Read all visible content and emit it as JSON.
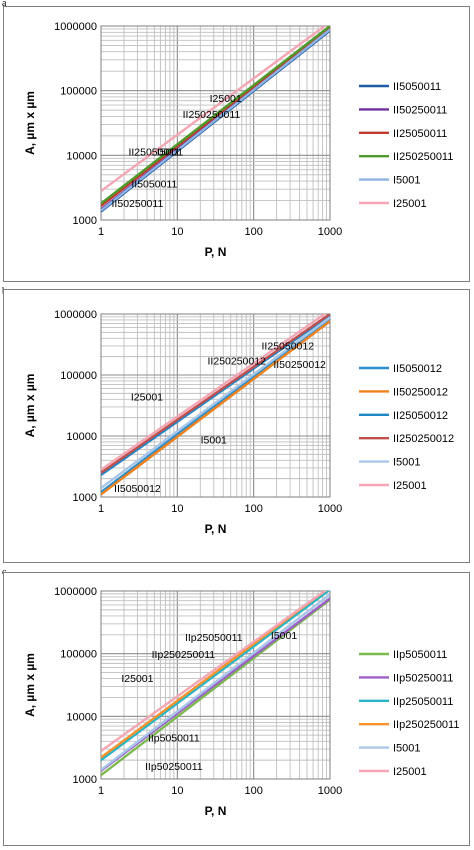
{
  "chart_data": [
    {
      "panel": "a",
      "type": "line",
      "xlabel": "P, N",
      "ylabel": "A, µm x µm",
      "xscale": "log",
      "yscale": "log",
      "xlim": [
        1,
        1000
      ],
      "ylim": [
        1000,
        1000000
      ],
      "x_ticks": [
        "1",
        "10",
        "100",
        "1000"
      ],
      "y_ticks": [
        "1000",
        "10000",
        "100000",
        "1000000"
      ],
      "grid": true,
      "legend_position": "right",
      "series": [
        {
          "name": "II5050011",
          "color": "#1f5aa6",
          "x": [
            1,
            1000
          ],
          "y": [
            1350,
            850000
          ]
        },
        {
          "name": "II50250011",
          "color": "#7030a0",
          "x": [
            1,
            1000
          ],
          "y": [
            1450,
            900000
          ]
        },
        {
          "name": "II25050011",
          "color": "#c0392b",
          "x": [
            1,
            1000
          ],
          "y": [
            1650,
            960000
          ]
        },
        {
          "name": "II250250011",
          "color": "#4e9a2a",
          "x": [
            1,
            1000
          ],
          "y": [
            1800,
            1000000
          ]
        },
        {
          "name": "I5001",
          "color": "#8db4e2",
          "x": [
            1,
            1000
          ],
          "y": [
            1400,
            880000
          ]
        },
        {
          "name": "I25001",
          "color": "#f4a6b4",
          "x": [
            1,
            1000
          ],
          "y": [
            2800,
            1150000
          ]
        }
      ],
      "annotations": [
        {
          "text": "I25001",
          "x": 43,
          "y": 67000
        },
        {
          "text": "II250250011",
          "x": 28,
          "y": 38000
        },
        {
          "text": "II25050011",
          "x": 5,
          "y": 10000
        },
        {
          "text": "I5001",
          "x": 8,
          "y": 10000
        },
        {
          "text": "II5050011",
          "x": 5,
          "y": 3200
        },
        {
          "text": "II50250011",
          "x": 3,
          "y": 1600
        }
      ]
    },
    {
      "panel": "b",
      "type": "line",
      "xlabel": "P, N",
      "ylabel": "A, µm x µm",
      "xscale": "log",
      "yscale": "log",
      "xlim": [
        1,
        1000
      ],
      "ylim": [
        1000,
        1000000
      ],
      "x_ticks": [
        "1",
        "10",
        "100",
        "1000"
      ],
      "y_ticks": [
        "1000",
        "10000",
        "100000",
        "1000000"
      ],
      "grid": true,
      "legend_position": "right",
      "series": [
        {
          "name": "II5050012",
          "color": "#2e8fc9",
          "x": [
            1,
            1000
          ],
          "y": [
            1200,
            850000
          ]
        },
        {
          "name": "II50250012",
          "color": "#f0821e",
          "x": [
            1,
            1000
          ],
          "y": [
            1100,
            760000
          ]
        },
        {
          "name": "II25050012",
          "color": "#1f86c8",
          "x": [
            1,
            1000
          ],
          "y": [
            2300,
            950000
          ]
        },
        {
          "name": "II250250012",
          "color": "#c0504d",
          "x": [
            1,
            1000
          ],
          "y": [
            2500,
            1000000
          ]
        },
        {
          "name": "I5001",
          "color": "#a9c6e8",
          "x": [
            1,
            1000
          ],
          "y": [
            1400,
            880000
          ]
        },
        {
          "name": "I25001",
          "color": "#f4a6b4",
          "x": [
            1,
            1000
          ],
          "y": [
            2800,
            1150000
          ]
        }
      ],
      "annotations": [
        {
          "text": "II25050012",
          "x": 280,
          "y": 260000
        },
        {
          "text": "II250250012",
          "x": 60,
          "y": 150000
        },
        {
          "text": "II50250012",
          "x": 400,
          "y": 130000
        },
        {
          "text": "I25001",
          "x": 4,
          "y": 38000
        },
        {
          "text": "I5001",
          "x": 30,
          "y": 7500
        },
        {
          "text": "II5050012",
          "x": 3,
          "y": 1200
        }
      ]
    },
    {
      "panel": "c",
      "type": "line",
      "xlabel": "P, N",
      "ylabel": "A, µm x µm",
      "xscale": "log",
      "yscale": "log",
      "xlim": [
        1,
        1000
      ],
      "ylim": [
        1000,
        1000000
      ],
      "x_ticks": [
        "1",
        "10",
        "100",
        "1000"
      ],
      "y_ticks": [
        "1000",
        "10000",
        "100000",
        "1000000"
      ],
      "grid": true,
      "legend_position": "right",
      "series": [
        {
          "name": "IIp5050011",
          "color": "#7cba4e",
          "x": [
            1,
            1000
          ],
          "y": [
            1150,
            730000
          ]
        },
        {
          "name": "IIp50250011",
          "color": "#9c5fc7",
          "x": [
            1,
            1000
          ],
          "y": [
            1350,
            760000
          ]
        },
        {
          "name": "IIp25050011",
          "color": "#26b6c6",
          "x": [
            1,
            1000
          ],
          "y": [
            2000,
            1050000
          ]
        },
        {
          "name": "IIp250250011",
          "color": "#f7922f",
          "x": [
            1,
            1000
          ],
          "y": [
            2200,
            1150000
          ]
        },
        {
          "name": "I5001",
          "color": "#a9c6e8",
          "x": [
            1,
            1000
          ],
          "y": [
            1400,
            880000
          ]
        },
        {
          "name": "I25001",
          "color": "#f4a6b4",
          "x": [
            1,
            1000
          ],
          "y": [
            2800,
            1150000
          ]
        }
      ],
      "annotations": [
        {
          "text": "IIp25050011",
          "x": 30,
          "y": 160000
        },
        {
          "text": "IIp250250011",
          "x": 12,
          "y": 85000
        },
        {
          "text": "I5001",
          "x": 250,
          "y": 170000
        },
        {
          "text": "I25001",
          "x": 3,
          "y": 35000
        },
        {
          "text": "IIp5050011",
          "x": 9,
          "y": 4000
        },
        {
          "text": "IIp50250011",
          "x": 9,
          "y": 1400
        }
      ]
    }
  ]
}
